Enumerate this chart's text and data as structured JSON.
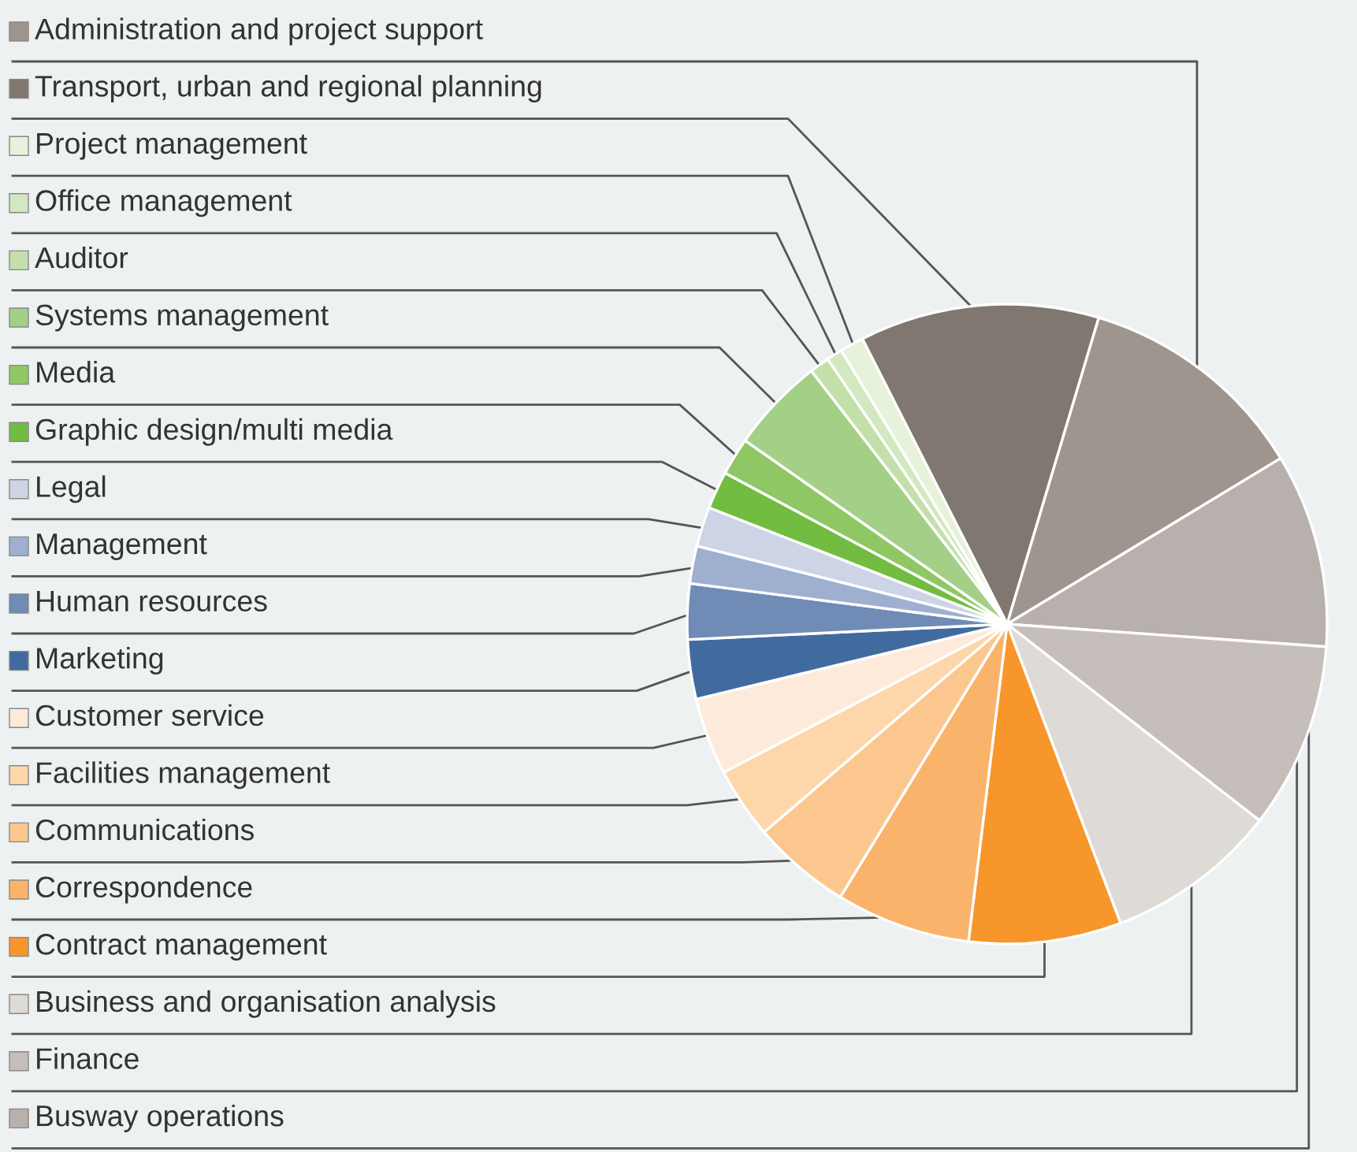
{
  "chart_data": {
    "type": "pie",
    "categories": [
      "Transport, urban and regional planning",
      "Administration and project support",
      "Busway operations",
      "Finance",
      "Business and organisation analysis",
      "Contract management",
      "Correspondence",
      "Communications",
      "Facilities management",
      "Customer service",
      "Marketing",
      "Human resources",
      "Management",
      "Legal",
      "Graphic design/multi media",
      "Media",
      "Systems management",
      "Auditor",
      "Office management",
      "Project management"
    ],
    "values": [
      12.1,
      11.7,
      9.8,
      9.4,
      8.7,
      7.7,
      6.8,
      5.0,
      3.6,
      3.9,
      3.0,
      2.8,
      1.9,
      2.0,
      1.9,
      1.9,
      4.8,
      1.0,
      0.8,
      1.2
    ],
    "colors": [
      "#807770",
      "#9e958f",
      "#b8b0ac",
      "#c6bebb",
      "#dedad6",
      "#f7962b",
      "#fab36a",
      "#fcc78e",
      "#fdd6aa",
      "#feeadb",
      "#416b9f",
      "#6f8bb6",
      "#9eafd0",
      "#cdd4e6",
      "#72bd41",
      "#8fc765",
      "#a3d086",
      "#c3e0aa",
      "#d2e8c0",
      "#e6f2dc"
    ],
    "legend": "left"
  }
}
